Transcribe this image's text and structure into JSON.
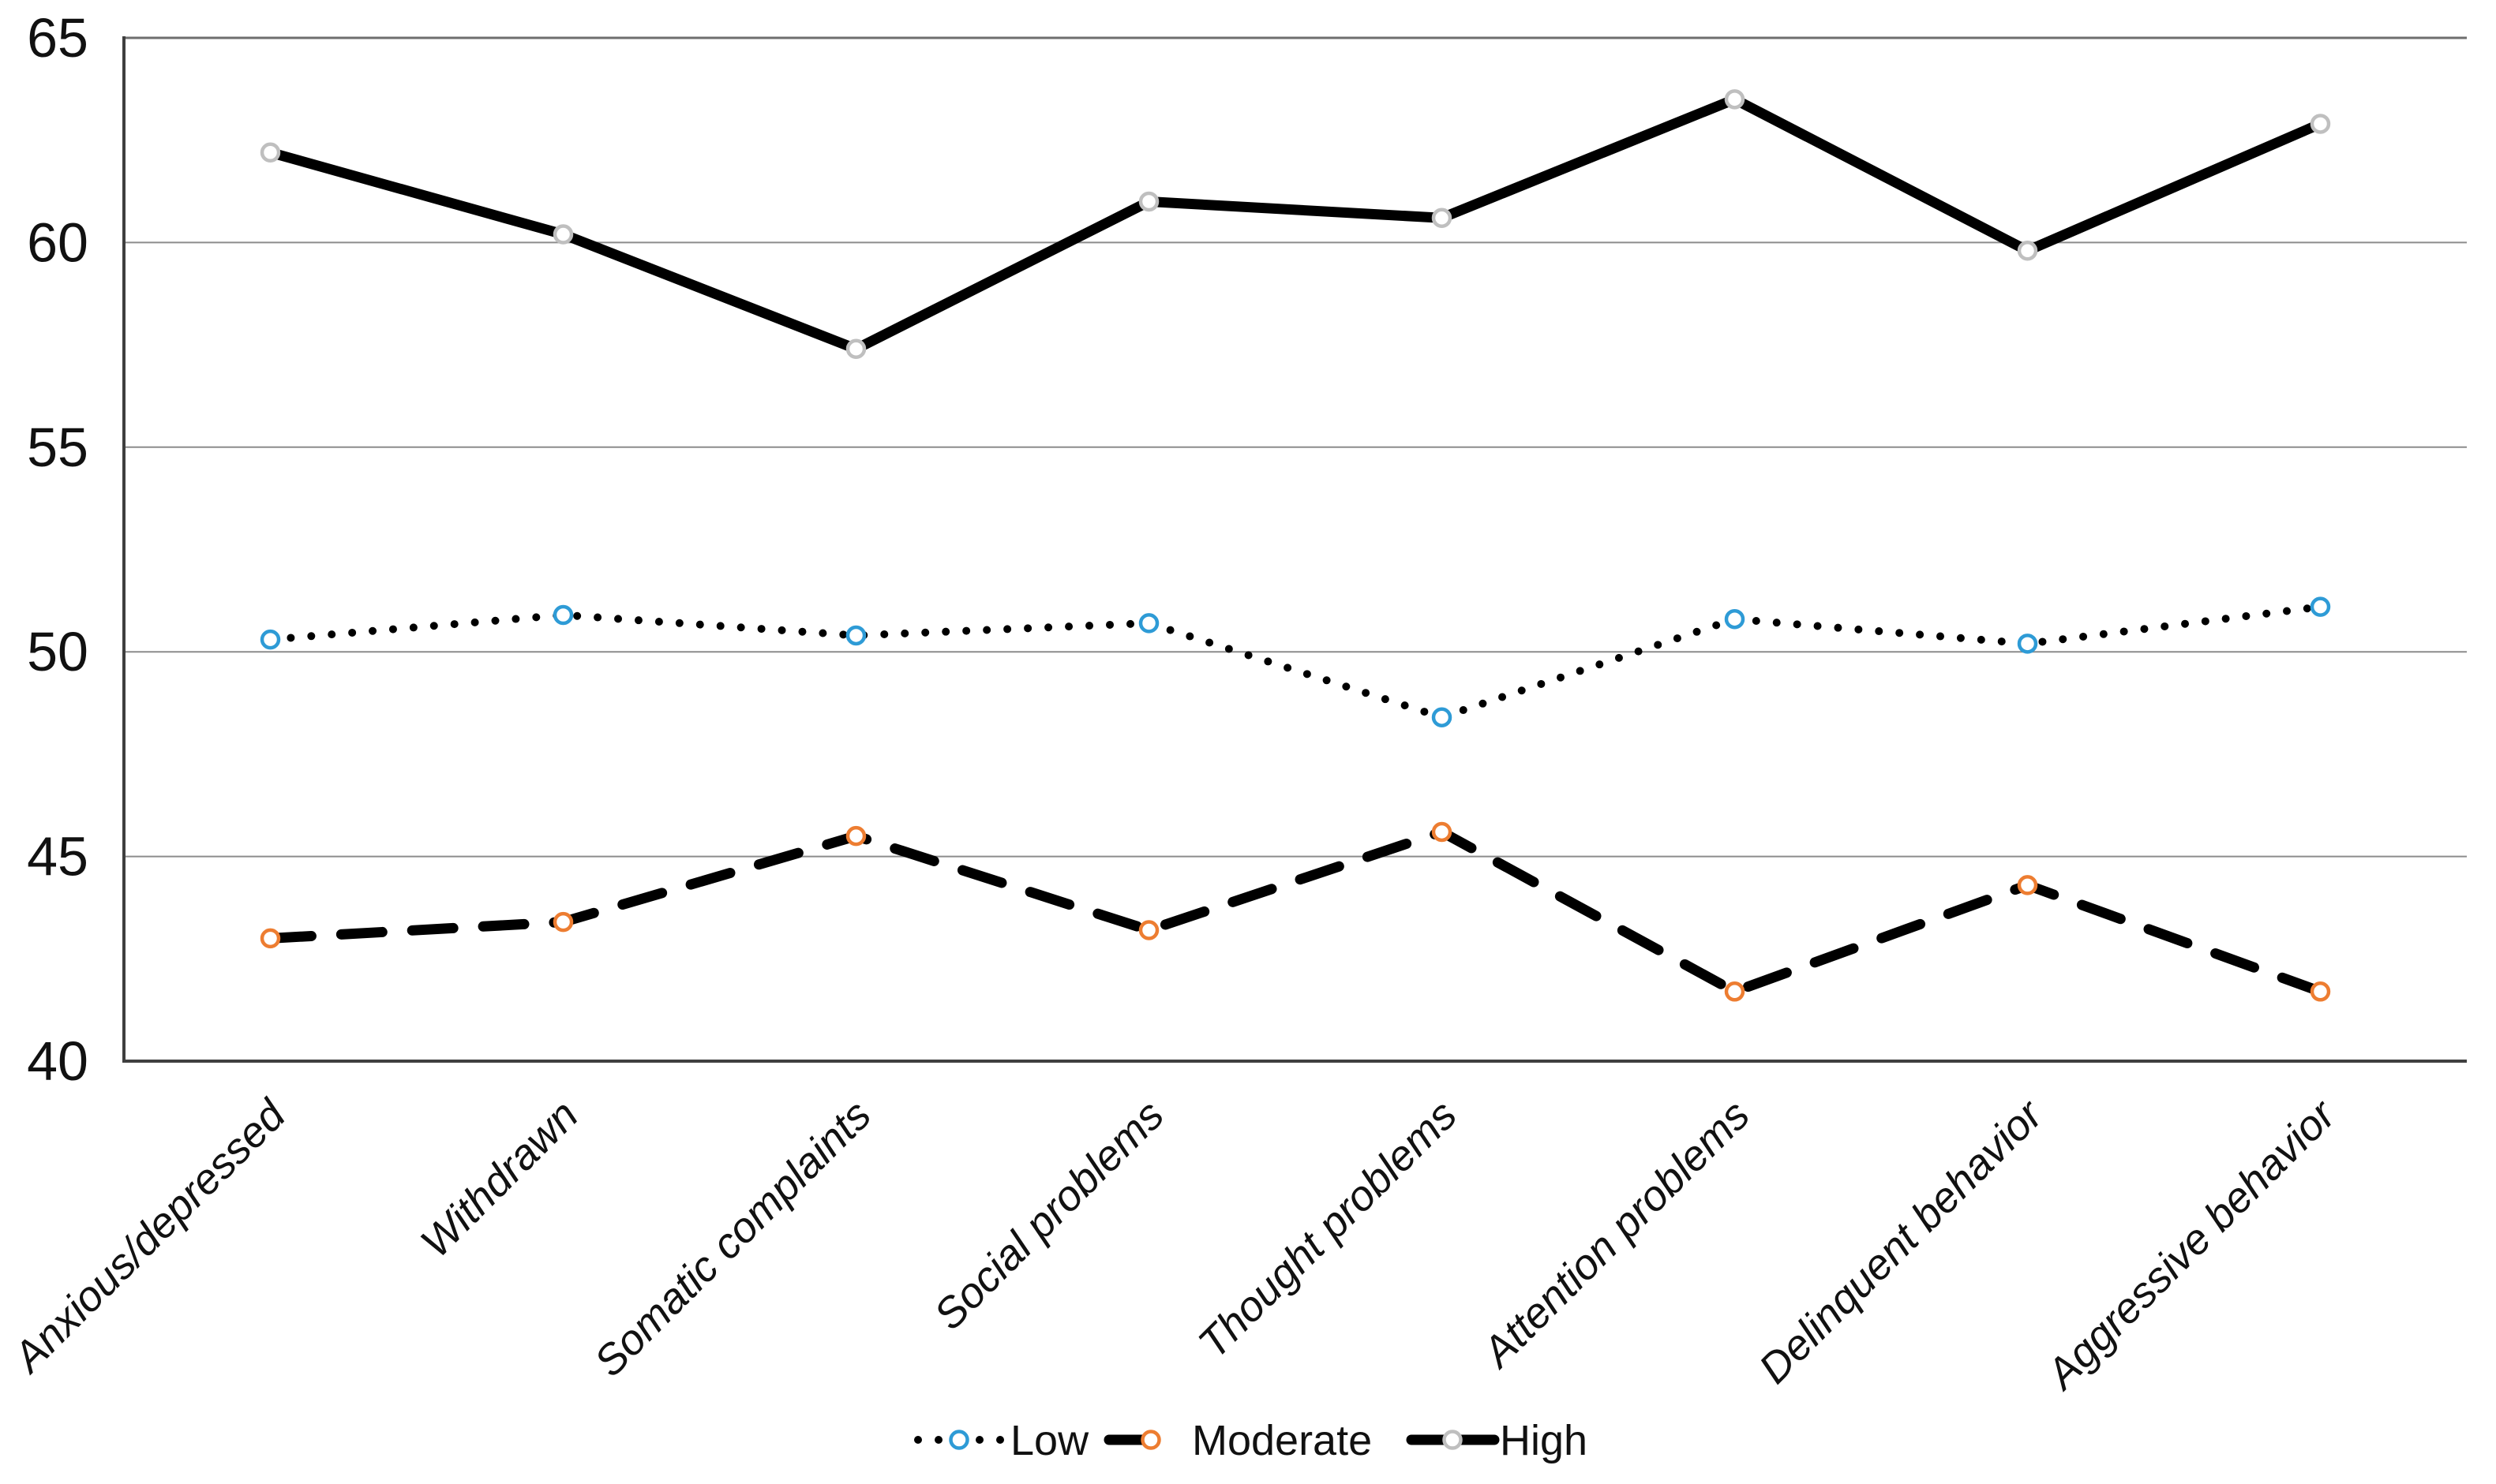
{
  "chart_data": {
    "type": "line",
    "title": "",
    "xlabel": "",
    "ylabel": "",
    "ylim": [
      40,
      65
    ],
    "y_ticks": [
      65,
      60,
      55,
      50,
      45,
      40
    ],
    "grid": "horizontal",
    "legend_position": "bottom",
    "categories": [
      "Anxious/depressed",
      "Withdrawn",
      "Somatic complaints",
      "Social problems",
      "Thought problems",
      "Attention problems",
      "Delinquent behavior",
      "Aggressive behavior"
    ],
    "series": [
      {
        "name": "Low",
        "values": [
          50.3,
          50.9,
          50.4,
          50.7,
          48.4,
          50.8,
          50.2,
          51.1
        ],
        "line_style": "dotted",
        "line_color": "#000000",
        "marker": "open-circle",
        "marker_color": "#2E9BD6"
      },
      {
        "name": "Moderate",
        "values": [
          43.0,
          43.4,
          45.5,
          43.2,
          45.6,
          41.7,
          44.3,
          41.7
        ],
        "line_style": "dashed",
        "line_color": "#000000",
        "marker": "open-circle",
        "marker_color": "#ED7D31"
      },
      {
        "name": "High",
        "values": [
          62.2,
          60.2,
          57.4,
          61.0,
          60.6,
          63.5,
          59.8,
          62.9
        ],
        "line_style": "solid",
        "line_color": "#000000",
        "marker": "open-circle",
        "marker_color": "#BFBFBF"
      }
    ],
    "colors": {
      "gridline": "#8c8c8c",
      "axis_line": "#3f3f3f",
      "top_border": "#6e6e6e",
      "text": "#111111",
      "marker_fill": "#ffffff"
    }
  }
}
